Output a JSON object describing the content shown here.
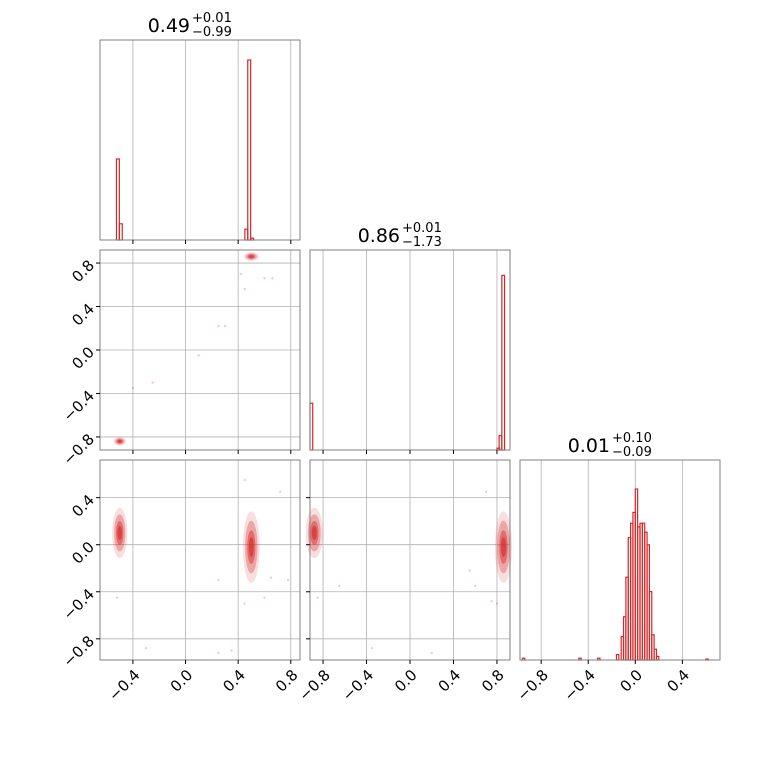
{
  "figure": {
    "type": "corner-plot",
    "color": "#d62728",
    "grid": true
  },
  "chart_data": {
    "type": "corner",
    "series_color": "#d62728",
    "parameters": [
      {
        "title": {
          "value": "0.49",
          "plus": "+0.01",
          "minus": "−0.99"
        },
        "range": [
          -0.65,
          0.87
        ],
        "ticks": [
          -0.4,
          0.0,
          0.4,
          0.8
        ],
        "tick_labels": [
          "−0.4",
          "0.0",
          "0.4",
          "0.8"
        ],
        "histogram": {
          "bins": [
            {
              "x": -0.525,
              "h": 0.45
            },
            {
              "x": -0.503,
              "h": 0.09
            },
            {
              "x": -0.481,
              "h": 0.0
            },
            {
              "x": 0.451,
              "h": 0.06
            },
            {
              "x": 0.473,
              "h": 1.0
            },
            {
              "x": 0.495,
              "h": 0.01
            }
          ],
          "bin_width": 0.022
        }
      },
      {
        "title": {
          "value": "0.86",
          "plus": "+0.01",
          "minus": "−1.73"
        },
        "range": [
          -0.92,
          0.92
        ],
        "ticks": [
          -0.8,
          -0.4,
          0.0,
          0.4,
          0.8
        ],
        "tick_labels": [
          "−0.8",
          "−0.4",
          "0.0",
          "0.4",
          "0.8"
        ],
        "histogram": {
          "bins": [
            {
              "x": -0.92,
              "h": 0.26
            },
            {
              "x": -0.895,
              "h": 0.0
            },
            {
              "x": 0.8,
              "h": 0.01
            },
            {
              "x": 0.82,
              "h": 0.08
            },
            {
              "x": 0.845,
              "h": 0.97
            },
            {
              "x": 0.87,
              "h": 0.0
            }
          ],
          "bin_width": 0.025
        }
      },
      {
        "title": {
          "value": "0.01",
          "plus": "+0.10",
          "minus": "−0.09"
        },
        "range": [
          -0.98,
          0.72
        ],
        "ticks": [
          -0.8,
          -0.4,
          0.0,
          0.4
        ],
        "tick_labels": [
          "−0.8",
          "−0.4",
          "0.0",
          "0.4"
        ],
        "histogram": {
          "bins": [
            {
              "x": -0.96,
              "h": 0.01
            },
            {
              "x": -0.48,
              "h": 0.01
            },
            {
              "x": -0.32,
              "h": 0.01
            },
            {
              "x": -0.16,
              "h": 0.03
            },
            {
              "x": -0.12,
              "h": 0.13
            },
            {
              "x": -0.1,
              "h": 0.24
            },
            {
              "x": -0.08,
              "h": 0.46
            },
            {
              "x": -0.06,
              "h": 0.68
            },
            {
              "x": -0.04,
              "h": 0.76
            },
            {
              "x": -0.02,
              "h": 0.82
            },
            {
              "x": 0.0,
              "h": 0.95
            },
            {
              "x": 0.02,
              "h": 0.74
            },
            {
              "x": 0.04,
              "h": 0.76
            },
            {
              "x": 0.06,
              "h": 0.76
            },
            {
              "x": 0.08,
              "h": 0.71
            },
            {
              "x": 0.1,
              "h": 0.64
            },
            {
              "x": 0.12,
              "h": 0.38
            },
            {
              "x": 0.14,
              "h": 0.14
            },
            {
              "x": 0.16,
              "h": 0.06
            },
            {
              "x": 0.18,
              "h": 0.02
            },
            {
              "x": 0.6,
              "h": 0.005
            }
          ],
          "bin_width": 0.02
        }
      }
    ],
    "pairs": [
      {
        "x_param": 0,
        "y_param": 1,
        "clusters": [
          {
            "cx": 0.5,
            "cy": 0.86,
            "sx": 0.018,
            "sy": 0.012
          },
          {
            "cx": -0.5,
            "cy": -0.84,
            "sx": 0.015,
            "sy": 0.012
          }
        ],
        "scatter": [
          {
            "x": 0.25,
            "y": 0.22
          },
          {
            "x": 0.3,
            "y": 0.22
          },
          {
            "x": 0.1,
            "y": -0.05
          },
          {
            "x": -0.25,
            "y": -0.3
          },
          {
            "x": 0.6,
            "y": 0.66
          },
          {
            "x": 0.66,
            "y": 0.66
          },
          {
            "x": 0.45,
            "y": 0.56
          },
          {
            "x": -0.4,
            "y": -0.35
          },
          {
            "x": 0.42,
            "y": 0.7
          }
        ]
      },
      {
        "x_param": 0,
        "y_param": 2,
        "clusters": [
          {
            "cx": 0.5,
            "cy": -0.02,
            "sx": 0.02,
            "sy": 0.1
          },
          {
            "cx": -0.5,
            "cy": 0.1,
            "sx": 0.018,
            "sy": 0.07
          }
        ],
        "scatter": [
          {
            "x": 0.25,
            "y": -0.3
          },
          {
            "x": 0.6,
            "y": -0.45
          },
          {
            "x": 0.45,
            "y": 0.55
          },
          {
            "x": 0.72,
            "y": 0.45
          },
          {
            "x": -0.3,
            "y": -0.88
          },
          {
            "x": 0.25,
            "y": -0.92
          },
          {
            "x": 0.35,
            "y": -0.9
          },
          {
            "x": 0.65,
            "y": -0.28
          },
          {
            "x": -0.52,
            "y": -0.45
          },
          {
            "x": 0.78,
            "y": -0.3
          },
          {
            "x": 0.45,
            "y": -0.5
          }
        ]
      },
      {
        "x_param": 1,
        "y_param": 2,
        "clusters": [
          {
            "cx": 0.86,
            "cy": -0.02,
            "sx": 0.025,
            "sy": 0.1
          },
          {
            "cx": -0.88,
            "cy": 0.1,
            "sx": 0.025,
            "sy": 0.07
          }
        ],
        "scatter": [
          {
            "x": -0.35,
            "y": -0.88
          },
          {
            "x": 0.2,
            "y": -0.92
          },
          {
            "x": 0.6,
            "y": -0.35
          },
          {
            "x": 0.55,
            "y": -0.22
          },
          {
            "x": 0.7,
            "y": 0.45
          },
          {
            "x": 0.75,
            "y": -0.48
          },
          {
            "x": -0.65,
            "y": -0.35
          },
          {
            "x": -0.85,
            "y": -0.45
          },
          {
            "x": 0.8,
            "y": -0.5
          }
        ]
      }
    ]
  }
}
